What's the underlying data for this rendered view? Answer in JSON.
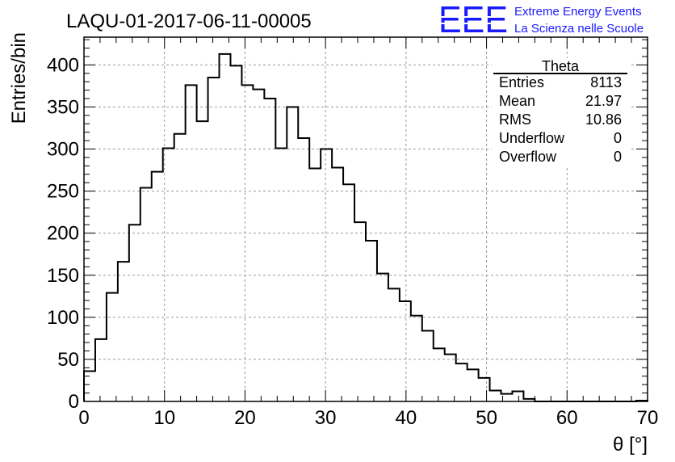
{
  "chart_data": {
    "type": "histogram",
    "title": "LAQU-01-2017-06-11-00005",
    "xlabel": "θ [°]",
    "ylabel": "Entries/bin",
    "xlim": [
      0,
      70
    ],
    "ylim": [
      0,
      433
    ],
    "grid": true,
    "x_ticks": [
      0,
      10,
      20,
      30,
      40,
      50,
      60,
      70
    ],
    "y_ticks": [
      0,
      50,
      100,
      150,
      200,
      250,
      300,
      350,
      400
    ],
    "bin_width": 1.4,
    "values": [
      36,
      74,
      129,
      166,
      210,
      254,
      273,
      301,
      318,
      376,
      333,
      385,
      413,
      399,
      376,
      371,
      360,
      301,
      350,
      313,
      277,
      300,
      278,
      258,
      213,
      191,
      152,
      134,
      119,
      102,
      84,
      63,
      56,
      45,
      38,
      28,
      13,
      9,
      12,
      3,
      0,
      0,
      0,
      0,
      0,
      0,
      0,
      0,
      0,
      1
    ]
  },
  "stats": {
    "name": "Theta",
    "rows": [
      {
        "label": "Entries",
        "value": "8113"
      },
      {
        "label": "Mean",
        "value": "21.97"
      },
      {
        "label": "RMS",
        "value": "10.86"
      },
      {
        "label": "Underflow",
        "value": "0"
      },
      {
        "label": "Overflow",
        "value": "0"
      }
    ]
  },
  "logo": {
    "mark": "EEE",
    "line1": "Extreme Energy Events",
    "line2": "La Scienza nelle Scuole",
    "color": "#1a1aff"
  }
}
